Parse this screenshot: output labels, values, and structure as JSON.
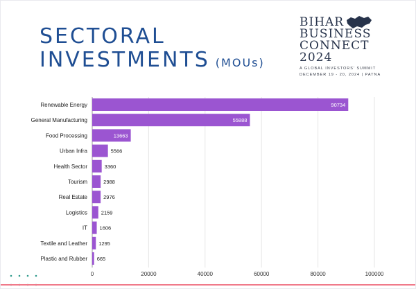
{
  "title": {
    "line1": "SECTORAL",
    "line2": "INVESTMENTS",
    "suffix": "(MOUs)"
  },
  "logo": {
    "line1": "BIHAR",
    "line2": "BUSINESS",
    "line3": "CONNECT",
    "line4": "2024",
    "tagline": "A GLOBAL INVESTORS' SUMMIT",
    "dates": "DECEMBER 19 - 20, 2024 | PATNA",
    "icon": "bihar-map-icon"
  },
  "colors": {
    "bar": "#9b55d1",
    "title": "#1f4e93",
    "accent": "#f07a8a",
    "dots": "#2f9a8c"
  },
  "chart_data": {
    "type": "bar",
    "orientation": "horizontal",
    "categories": [
      "Renewable Energy",
      "General Manufacturing",
      "Food Processing",
      "Urban Infra",
      "Health Sector",
      "Tourism",
      "Real Estate",
      "Logistics",
      "IT",
      "Textile and Leather",
      "Plastic and Rubber"
    ],
    "values": [
      90734,
      55888,
      13663,
      5566,
      3360,
      2988,
      2976,
      2159,
      1606,
      1295,
      665
    ],
    "data_labels": [
      "90734",
      "55888",
      "13663",
      "5566",
      "3360",
      "2988",
      "2976",
      "2159",
      "1606",
      "1295",
      "665"
    ],
    "xlim": [
      0,
      100000
    ],
    "xticks": [
      0,
      20000,
      40000,
      60000,
      80000,
      100000
    ],
    "xtick_labels": [
      "0",
      "20000",
      "40000",
      "60000",
      "80000",
      "100000"
    ],
    "grid": true,
    "legend": "none"
  }
}
